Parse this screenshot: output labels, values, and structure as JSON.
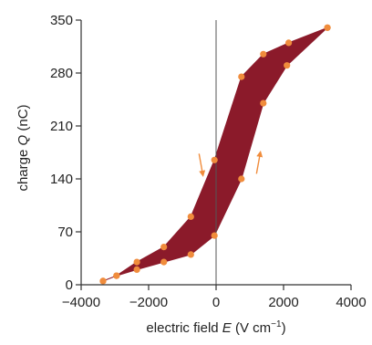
{
  "chart_data": {
    "type": "scatter",
    "xlabel_prefix": "electric field ",
    "xlabel_symbol": "E",
    "xlabel_units": " (V cm",
    "xlabel_exponent": "−1",
    "xlabel_close": ")",
    "ylabel_prefix": "charge ",
    "ylabel_symbol": "Q",
    "ylabel_units": " (nC)",
    "xlim": [
      -4000,
      4000
    ],
    "ylim": [
      0,
      350
    ],
    "x_ticks": [
      -4000,
      -2000,
      0,
      2000,
      4000
    ],
    "x_tick_labels": [
      "−4000",
      "−2000",
      "0",
      "2000",
      "4000"
    ],
    "y_ticks": [
      0,
      70,
      140,
      210,
      280,
      350
    ],
    "y_tick_labels": [
      "0",
      "70",
      "140",
      "210",
      "280",
      "350"
    ],
    "grid": false,
    "colors": {
      "fill": "#8b1a2a",
      "points": "#f08c3c",
      "arrows": "#f08c3c",
      "axes": "#333333",
      "zero_line": "#555555"
    },
    "annotations": [
      {
        "type": "arrow",
        "direction": "down",
        "x": -450,
        "y": 160
      },
      {
        "type": "arrow",
        "direction": "up",
        "x": 1250,
        "y": 160
      }
    ],
    "series": [
      {
        "values": [
          [
            -3350,
            5
          ],
          [
            -2950,
            12
          ],
          [
            -2350,
            20
          ],
          [
            -1550,
            30
          ],
          [
            -750,
            40
          ],
          [
            -50,
            65
          ],
          [
            750,
            140
          ],
          [
            1400,
            240
          ],
          [
            2100,
            290
          ],
          [
            3300,
            340
          ]
        ]
      },
      {
        "values": [
          [
            3300,
            340
          ],
          [
            2150,
            320
          ],
          [
            1400,
            305
          ],
          [
            750,
            275
          ],
          [
            -50,
            165
          ],
          [
            -750,
            90
          ],
          [
            -1550,
            50
          ],
          [
            -2350,
            30
          ],
          [
            -2950,
            12
          ],
          [
            -3350,
            5
          ]
        ]
      }
    ]
  }
}
